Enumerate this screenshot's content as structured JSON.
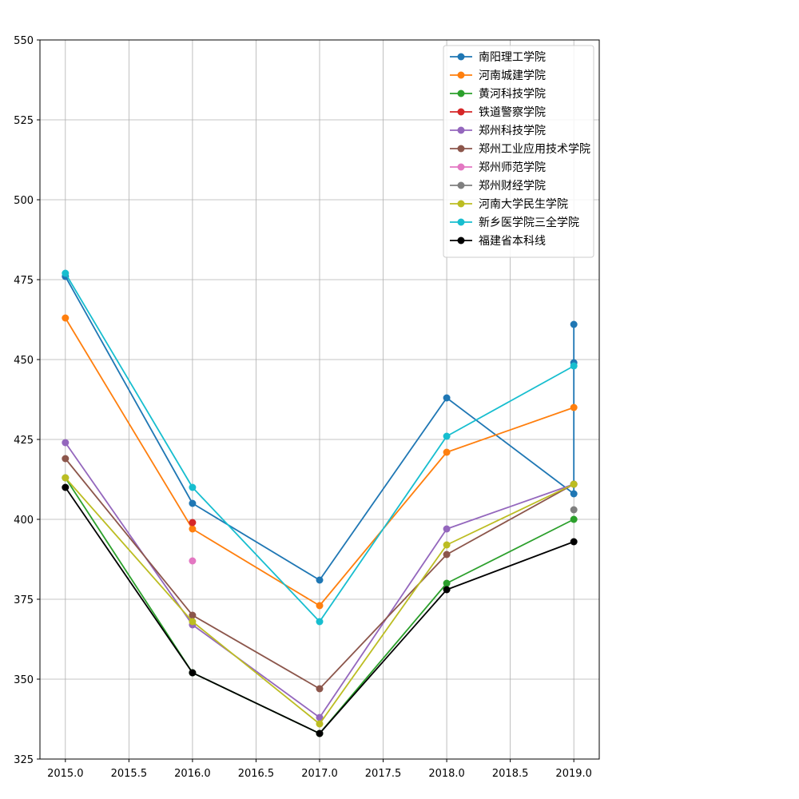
{
  "chart_data": {
    "type": "line",
    "title": "",
    "xlabel": "",
    "ylabel": "",
    "xlim": [
      2014.8,
      2019.2
    ],
    "ylim": [
      325,
      550
    ],
    "xticks": [
      "2015.0",
      "2015.5",
      "2016.0",
      "2016.5",
      "2017.0",
      "2017.5",
      "2018.0",
      "2018.5",
      "2019.0"
    ],
    "yticks": [
      "325",
      "350",
      "375",
      "400",
      "425",
      "450",
      "475",
      "500",
      "525",
      "550"
    ],
    "grid": true,
    "legend_position": "top-right",
    "series": [
      {
        "name": "南阳理工学院",
        "color": "#1f77b4",
        "points": [
          [
            2015,
            476
          ],
          [
            2016,
            405
          ],
          [
            2017,
            381
          ],
          [
            2018,
            438
          ],
          [
            2019,
            408
          ],
          [
            2019,
            461
          ],
          [
            2019,
            449
          ]
        ]
      },
      {
        "name": "河南城建学院",
        "color": "#ff7f0e",
        "points": [
          [
            2015,
            463
          ],
          [
            2016,
            397
          ],
          [
            2017,
            373
          ],
          [
            2018,
            421
          ],
          [
            2019,
            435
          ]
        ]
      },
      {
        "name": "黄河科技学院",
        "color": "#2ca02c",
        "points": [
          [
            2015,
            413
          ],
          [
            2016,
            352
          ],
          [
            2017,
            333
          ],
          [
            2018,
            380
          ],
          [
            2019,
            400
          ]
        ]
      },
      {
        "name": "铁道警察学院",
        "color": "#d62728",
        "points": [
          [
            2016,
            399
          ]
        ]
      },
      {
        "name": "郑州科技学院",
        "color": "#9467bd",
        "points": [
          [
            2015,
            424
          ],
          [
            2016,
            367
          ],
          [
            2017,
            338
          ],
          [
            2018,
            397
          ],
          [
            2019,
            411
          ]
        ]
      },
      {
        "name": "郑州工业应用技术学院",
        "color": "#8c564b",
        "points": [
          [
            2015,
            419
          ],
          [
            2016,
            370
          ],
          [
            2017,
            347
          ],
          [
            2018,
            389
          ],
          [
            2019,
            411
          ]
        ]
      },
      {
        "name": "郑州师范学院",
        "color": "#e377c2",
        "points": [
          [
            2016,
            387
          ]
        ]
      },
      {
        "name": "郑州财经学院",
        "color": "#7f7f7f",
        "points": [
          [
            2019,
            403
          ]
        ]
      },
      {
        "name": "河南大学民生学院",
        "color": "#bcbd22",
        "points": [
          [
            2015,
            413
          ],
          [
            2016,
            368
          ],
          [
            2017,
            336
          ],
          [
            2018,
            392
          ],
          [
            2019,
            411
          ]
        ]
      },
      {
        "name": "新乡医学院三全学院",
        "color": "#17becf",
        "points": [
          [
            2015,
            477
          ],
          [
            2016,
            410
          ],
          [
            2017,
            368
          ],
          [
            2018,
            426
          ],
          [
            2019,
            448
          ]
        ]
      },
      {
        "name": "福建省本科线",
        "color": "#000000",
        "points": [
          [
            2015,
            410
          ],
          [
            2016,
            352
          ],
          [
            2017,
            333
          ],
          [
            2018,
            378
          ],
          [
            2019,
            393
          ]
        ]
      }
    ]
  }
}
